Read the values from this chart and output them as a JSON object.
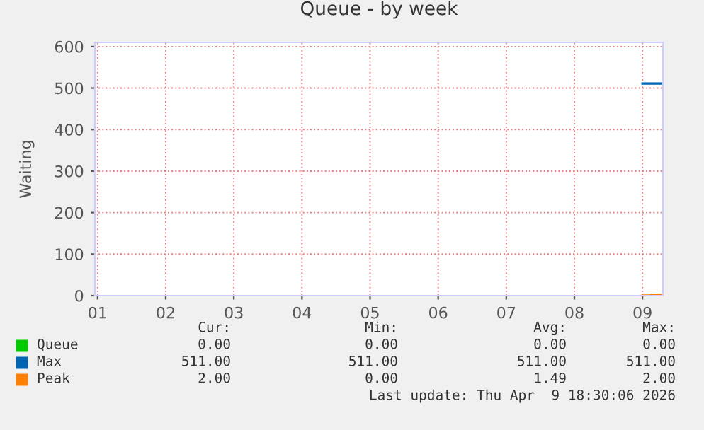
{
  "chart_data": {
    "type": "step",
    "title": "Queue - by week",
    "ylabel": "Waiting",
    "xlim": [
      0.96,
      9.3
    ],
    "xticks": [
      {
        "value": 1,
        "label": "01"
      },
      {
        "value": 2,
        "label": "02"
      },
      {
        "value": 3,
        "label": "03"
      },
      {
        "value": 4,
        "label": "04"
      },
      {
        "value": 5,
        "label": "05"
      },
      {
        "value": 6,
        "label": "06"
      },
      {
        "value": 7,
        "label": "07"
      },
      {
        "value": 8,
        "label": "08"
      },
      {
        "value": 9,
        "label": "09"
      }
    ],
    "ylim": [
      0,
      610
    ],
    "yticks": [
      0,
      100,
      200,
      300,
      400,
      500,
      600
    ],
    "grid": true,
    "line_style": "solid",
    "legend": "bottom",
    "series": [
      {
        "name": "Queue",
        "color": "#00cc00"
      },
      {
        "name": "Max",
        "color": "#0066b3",
        "x": [
          9.0,
          9.27
        ],
        "values": [
          511,
          511
        ]
      },
      {
        "name": "Peak",
        "color": "#ff8000",
        "x": [
          9.0,
          9.12,
          9.27
        ],
        "values": [
          0,
          2,
          2
        ]
      }
    ],
    "annotations": [
      "Cur:",
      "Min:",
      "Avg:",
      "Max:",
      "0.00",
      "0.00",
      "0.00",
      "0.00",
      "511.00",
      "511.00",
      "511.00",
      "511.00",
      "2.00",
      "0.00",
      "1.49",
      "2.00",
      "Last update: Thu Apr  9 18:30:06 2026"
    ]
  }
}
